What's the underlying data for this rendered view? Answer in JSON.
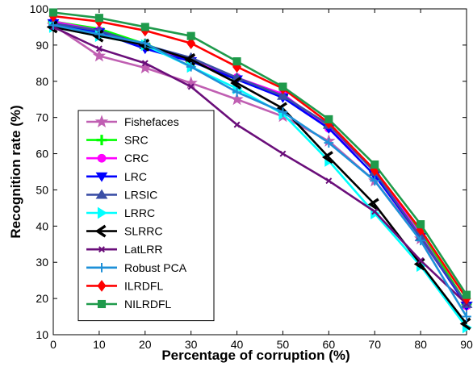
{
  "chart_data": {
    "type": "line",
    "title": "",
    "xlabel": "Percentage of corruption (%)",
    "ylabel": "Recognition rate (%)",
    "x": [
      0,
      10,
      20,
      30,
      40,
      50,
      60,
      70,
      80,
      90
    ],
    "xlim": [
      0,
      90
    ],
    "ylim": [
      10,
      100
    ],
    "xticks": [
      "0",
      "10",
      "20",
      "30",
      "40",
      "50",
      "60",
      "70",
      "80",
      "90"
    ],
    "yticks": [
      "10",
      "20",
      "30",
      "40",
      "50",
      "60",
      "70",
      "80",
      "90",
      "100"
    ],
    "grid": false,
    "legend_position": "lower-left",
    "series": [
      {
        "name": "Fishefaces",
        "color": "#C05FB2",
        "marker": "star",
        "values": [
          95.5,
          87,
          83.7,
          79.5,
          75,
          70.3,
          63.5,
          52.5,
          36.5,
          18.5
        ]
      },
      {
        "name": "SRC",
        "color": "#00FF00",
        "marker": "plus-bold",
        "values": [
          96.5,
          94.5,
          90.3,
          85.5,
          80.5,
          76,
          67.5,
          55.5,
          38.5,
          18.5
        ]
      },
      {
        "name": "CRC",
        "color": "#FF00FF",
        "marker": "circle",
        "values": [
          96.5,
          94,
          89.5,
          86,
          81,
          76.5,
          67,
          55.5,
          37.5,
          18
        ]
      },
      {
        "name": "LRC",
        "color": "#0000FF",
        "marker": "triangle-down",
        "values": [
          96,
          93.5,
          89,
          85.5,
          80.5,
          75.5,
          67,
          54,
          37,
          18
        ]
      },
      {
        "name": "LRSIC",
        "color": "#3B4FA6",
        "marker": "triangle-up",
        "values": [
          96,
          94,
          90,
          86.5,
          81,
          76,
          68,
          55,
          37,
          18.5
        ]
      },
      {
        "name": "LRRC",
        "color": "#00FFFF",
        "marker": "triangle-right",
        "values": [
          95,
          92.5,
          90,
          84,
          78,
          71,
          58,
          43.5,
          29,
          12
        ]
      },
      {
        "name": "SLRRC",
        "color": "#000000",
        "marker": "triangle-left",
        "values": [
          95,
          92.5,
          90,
          86,
          79.5,
          72.5,
          59,
          46,
          29.5,
          13
        ]
      },
      {
        "name": "LatLRR",
        "color": "#6A0E7A",
        "marker": "x-small",
        "values": [
          95,
          89,
          85,
          78.5,
          68,
          60,
          52.5,
          44,
          30.5,
          18.5
        ]
      },
      {
        "name": "Robust PCA",
        "color": "#1E90D8",
        "marker": "plus",
        "values": [
          95.5,
          93,
          90.5,
          84,
          77,
          71.5,
          63,
          52.5,
          36,
          15
        ]
      },
      {
        "name": "ILRDFL",
        "color": "#FF0000",
        "marker": "diamond",
        "values": [
          98,
          96.5,
          94,
          90.5,
          84,
          78,
          68.5,
          55.5,
          39,
          20
        ]
      },
      {
        "name": "NILRDFL",
        "color": "#1F9A4B",
        "marker": "square",
        "values": [
          99,
          97.5,
          95,
          92.5,
          85.5,
          78.5,
          69.5,
          57,
          40.5,
          21
        ]
      }
    ]
  }
}
